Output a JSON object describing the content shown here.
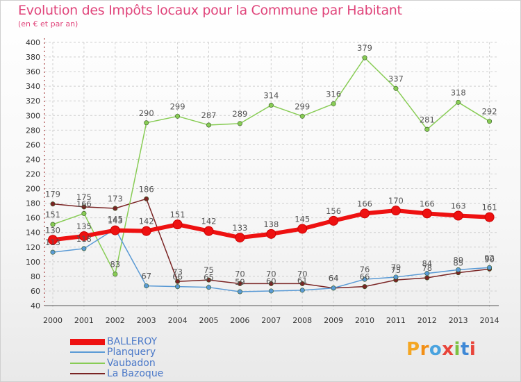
{
  "header": {
    "title": "Evolution des Impôts locaux pour la Commune par Habitant",
    "subtitle": "(en € et par an)"
  },
  "brand": {
    "logo_text": "Proxiti",
    "colors": [
      "#f4a623",
      "#f28f16",
      "#4aa3df",
      "#e8443a",
      "#7dc142",
      "#3e88d6",
      "#e8443a"
    ]
  },
  "chart_data": {
    "type": "line",
    "x": [
      "2000",
      "2001",
      "2002",
      "2003",
      "2004",
      "2005",
      "2006",
      "2007",
      "2008",
      "2009",
      "2010",
      "2011",
      "2012",
      "2013",
      "2014"
    ],
    "ylim": [
      40,
      400
    ],
    "yticks": [
      40,
      60,
      80,
      100,
      120,
      140,
      160,
      180,
      200,
      220,
      240,
      260,
      280,
      300,
      320,
      340,
      360,
      380,
      400
    ],
    "grid": true,
    "legend_position": "bottom-left",
    "series": [
      {
        "name": "BALLEROY",
        "color": "#ee1111",
        "values": [
          130,
          135,
          143,
          142,
          151,
          142,
          133,
          138,
          145,
          156,
          166,
          170,
          166,
          163,
          161
        ]
      },
      {
        "name": "Planquery",
        "color": "#5a9ad5",
        "values": [
          113,
          118,
          145,
          67,
          66,
          65,
          59,
          60,
          61,
          64,
          76,
          79,
          84,
          89,
          92
        ]
      },
      {
        "name": "Vaubadon",
        "color": "#88cc55",
        "values": [
          151,
          166,
          83,
          290,
          299,
          287,
          289,
          314,
          299,
          316,
          379,
          337,
          281,
          318,
          292
        ]
      },
      {
        "name": "La Bazoque",
        "color": "#7a2424",
        "values": [
          179,
          175,
          173,
          186,
          73,
          75,
          70,
          70,
          70,
          64,
          66,
          75,
          78,
          85,
          90
        ]
      }
    ],
    "labels": [
      {
        "series": 0,
        "text": [
          "130",
          "135",
          "143",
          "142",
          "151",
          "142",
          "133",
          "138",
          "145",
          "156",
          "166",
          "170",
          "166",
          "163",
          "161"
        ]
      },
      {
        "series": 1,
        "text": [
          "113",
          "118",
          "145",
          "67",
          "66",
          "65",
          "59",
          "60",
          "61",
          "64",
          "76",
          "79",
          "84",
          "89",
          "92"
        ]
      },
      {
        "series": 2,
        "text": [
          "151",
          "166",
          "83",
          "290",
          "299",
          "287",
          "289",
          "314",
          "299",
          "316",
          "379",
          "337",
          "281",
          "318",
          "292"
        ]
      },
      {
        "series": 3,
        "text": [
          "179",
          "175",
          "173",
          "186",
          "73",
          "75",
          "70",
          "70",
          "70",
          "64",
          "66",
          "75",
          "78",
          "85",
          "90"
        ]
      }
    ]
  }
}
